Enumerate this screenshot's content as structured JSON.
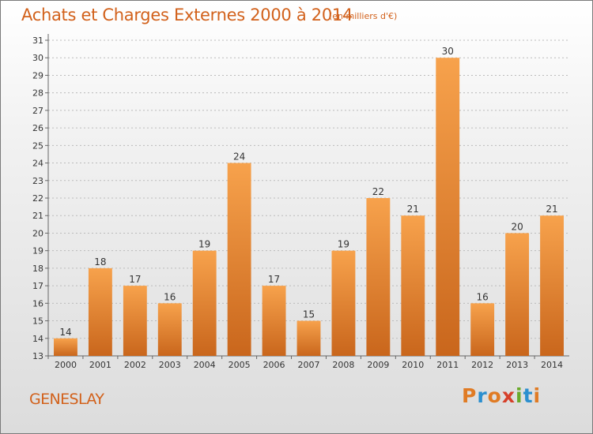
{
  "title": "Achats et Charges Externes 2000 à 2014",
  "unit_note": "(en milliers d'€)",
  "commune": "GENESLAY",
  "brand": {
    "text": "Proxiti",
    "letters": [
      {
        "char": "P",
        "color": "#e07b24"
      },
      {
        "char": "r",
        "color": "#2b8fcf"
      },
      {
        "char": "o",
        "color": "#e07b24"
      },
      {
        "char": "x",
        "color": "#d6402a"
      },
      {
        "char": "i",
        "color": "#6aaa2a"
      },
      {
        "char": "t",
        "color": "#2b8fcf"
      },
      {
        "char": "i",
        "color": "#e07b24"
      }
    ]
  },
  "colors": {
    "title": "#d2611b",
    "bar_light": "#f7a24c",
    "bar_dark": "#c9661c",
    "grid": "#bbbbbb"
  },
  "chart_data": {
    "type": "bar",
    "title": "Achats et Charges Externes 2000 à 2014",
    "unit": "(en milliers d'€)",
    "categories": [
      "2000",
      "2001",
      "2002",
      "2003",
      "2004",
      "2005",
      "2006",
      "2007",
      "2008",
      "2009",
      "2010",
      "2011",
      "2012",
      "2013",
      "2014"
    ],
    "values": [
      14,
      18,
      17,
      16,
      19,
      24,
      17,
      15,
      19,
      22,
      21,
      30,
      16,
      20,
      21
    ],
    "ylim": [
      13,
      31
    ],
    "yticks": [
      13,
      14,
      15,
      16,
      17,
      18,
      19,
      20,
      21,
      22,
      23,
      24,
      25,
      26,
      27,
      28,
      29,
      30,
      31
    ],
    "grid": true,
    "data_labels": true,
    "legend": "none"
  }
}
